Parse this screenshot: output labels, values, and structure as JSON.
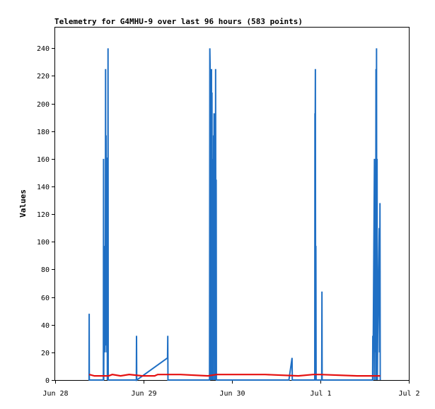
{
  "chart_data": {
    "type": "line",
    "title": "Telemetry for G4MHU-9 over last 96 hours (583 points)",
    "xlabel": "",
    "ylabel": "Values",
    "ylim": [
      0,
      255
    ],
    "xlim": [
      "2015-06-28T00:00",
      "2015-07-02T00:00"
    ],
    "x_ticks": [
      {
        "value": "2015-06-28T00:00",
        "label": "Jun 28"
      },
      {
        "value": "2015-06-29T00:00",
        "label": "Jun 29"
      },
      {
        "value": "2015-06-30T00:00",
        "label": "Jun 30"
      },
      {
        "value": "2015-07-01T00:00",
        "label": "Jul 1"
      },
      {
        "value": "2015-07-02T00:00",
        "label": "Jul 2"
      }
    ],
    "y_ticks": [
      0,
      20,
      40,
      60,
      80,
      100,
      120,
      140,
      160,
      180,
      200,
      220,
      240
    ],
    "grid": false,
    "series": [
      {
        "color": "#1f6fc4",
        "points": [
          [
            "2015-06-28T09:12",
            0
          ],
          [
            "2015-06-28T09:14",
            48
          ],
          [
            "2015-06-28T09:16",
            0
          ],
          [
            "2015-06-28T13:05",
            0
          ],
          [
            "2015-06-28T13:08",
            160
          ],
          [
            "2015-06-28T13:11",
            0
          ],
          [
            "2015-06-28T13:20",
            97
          ],
          [
            "2015-06-28T13:24",
            25
          ],
          [
            "2015-06-28T13:28",
            56
          ],
          [
            "2015-06-28T13:32",
            20
          ],
          [
            "2015-06-28T13:37",
            48
          ],
          [
            "2015-06-28T13:41",
            225
          ],
          [
            "2015-06-28T13:45",
            25
          ],
          [
            "2015-06-28T13:49",
            177
          ],
          [
            "2015-06-28T13:53",
            30
          ],
          [
            "2015-06-28T13:58",
            161
          ],
          [
            "2015-06-28T14:02",
            20
          ],
          [
            "2015-06-28T14:06",
            128
          ],
          [
            "2015-06-28T14:10",
            0
          ],
          [
            "2015-06-28T14:14",
            145
          ],
          [
            "2015-06-28T14:17",
            0
          ],
          [
            "2015-06-28T14:21",
            240
          ],
          [
            "2015-06-28T14:24",
            0
          ],
          [
            "2015-06-28T22:02",
            0
          ],
          [
            "2015-06-28T22:05",
            32
          ],
          [
            "2015-06-28T22:08",
            0
          ],
          [
            "2015-06-29T06:30",
            16
          ],
          [
            "2015-06-29T06:34",
            32
          ],
          [
            "2015-06-29T06:37",
            0
          ],
          [
            "2015-06-29T17:54",
            0
          ],
          [
            "2015-06-29T17:56",
            80
          ],
          [
            "2015-06-29T17:59",
            240
          ],
          [
            "2015-06-29T18:03",
            228
          ],
          [
            "2015-06-29T18:06",
            0
          ],
          [
            "2015-06-29T18:13",
            128
          ],
          [
            "2015-06-29T18:17",
            0
          ],
          [
            "2015-06-29T18:26",
            225
          ],
          [
            "2015-06-29T18:30",
            0
          ],
          [
            "2015-06-29T18:34",
            208
          ],
          [
            "2015-06-29T18:38",
            0
          ],
          [
            "2015-06-29T18:43",
            160
          ],
          [
            "2015-06-29T18:47",
            0
          ],
          [
            "2015-06-29T18:52",
            80
          ],
          [
            "2015-06-29T18:56",
            0
          ],
          [
            "2015-06-29T19:00",
            177
          ],
          [
            "2015-06-29T19:04",
            20
          ],
          [
            "2015-06-29T19:08",
            193
          ],
          [
            "2015-06-29T19:12",
            20
          ],
          [
            "2015-06-29T19:16",
            193
          ],
          [
            "2015-06-29T19:20",
            0
          ],
          [
            "2015-06-29T19:25",
            145
          ],
          [
            "2015-06-29T19:29",
            0
          ],
          [
            "2015-06-29T19:33",
            225
          ],
          [
            "2015-06-29T19:37",
            0
          ],
          [
            "2015-06-29T19:42",
            145
          ],
          [
            "2015-06-29T19:46",
            0
          ],
          [
            "2015-06-30T15:27",
            0
          ],
          [
            "2015-06-30T16:18",
            16
          ],
          [
            "2015-06-30T16:22",
            0
          ],
          [
            "2015-06-30T22:28",
            0
          ],
          [
            "2015-06-30T22:31",
            193
          ],
          [
            "2015-06-30T22:35",
            180
          ],
          [
            "2015-06-30T22:38",
            225
          ],
          [
            "2015-06-30T22:42",
            0
          ],
          [
            "2015-06-30T22:46",
            97
          ],
          [
            "2015-06-30T22:50",
            0
          ],
          [
            "2015-07-01T00:21",
            0
          ],
          [
            "2015-07-01T00:25",
            64
          ],
          [
            "2015-07-01T00:28",
            0
          ],
          [
            "2015-07-01T14:10",
            0
          ],
          [
            "2015-07-01T14:13",
            32
          ],
          [
            "2015-07-01T14:16",
            0
          ],
          [
            "2015-07-01T14:40",
            160
          ],
          [
            "2015-07-01T14:43",
            0
          ],
          [
            "2015-07-01T14:48",
            80
          ],
          [
            "2015-07-01T14:52",
            40
          ],
          [
            "2015-07-01T14:56",
            96
          ],
          [
            "2015-07-01T15:00",
            20
          ],
          [
            "2015-07-01T15:05",
            225
          ],
          [
            "2015-07-01T15:09",
            0
          ],
          [
            "2015-07-01T15:14",
            240
          ],
          [
            "2015-07-01T15:18",
            0
          ],
          [
            "2015-07-01T15:23",
            160
          ],
          [
            "2015-07-01T15:27",
            0
          ],
          [
            "2015-07-01T15:33",
            32
          ],
          [
            "2015-07-01T15:58",
            110
          ],
          [
            "2015-07-01T16:02",
            20
          ],
          [
            "2015-07-01T16:10",
            128
          ],
          [
            "2015-07-01T16:14",
            0
          ]
        ]
      },
      {
        "color": "#e51010",
        "points": [
          [
            "2015-06-28T09:14",
            4
          ],
          [
            "2015-06-28T10:40",
            3
          ],
          [
            "2015-06-28T14:30",
            3
          ],
          [
            "2015-06-28T15:30",
            4
          ],
          [
            "2015-06-28T17:45",
            3
          ],
          [
            "2015-06-28T20:05",
            4
          ],
          [
            "2015-06-28T23:40",
            3
          ],
          [
            "2015-06-29T03:00",
            3
          ],
          [
            "2015-06-29T03:50",
            4
          ],
          [
            "2015-06-29T10:00",
            4
          ],
          [
            "2015-06-29T17:30",
            3
          ],
          [
            "2015-06-29T19:45",
            4
          ],
          [
            "2015-06-30T09:00",
            4
          ],
          [
            "2015-06-30T18:00",
            3
          ],
          [
            "2015-06-30T22:00",
            4
          ],
          [
            "2015-07-01T00:00",
            4
          ],
          [
            "2015-07-01T10:00",
            3
          ],
          [
            "2015-07-01T16:14",
            3
          ]
        ]
      }
    ]
  }
}
